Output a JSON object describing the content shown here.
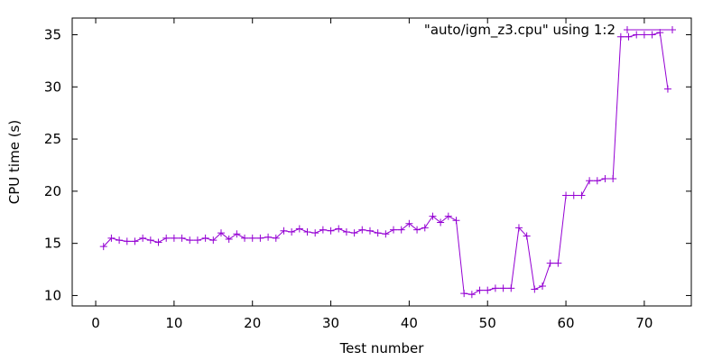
{
  "chart_data": {
    "type": "line",
    "xlabel": "Test number",
    "ylabel": "CPU time (s)",
    "xlim": [
      -3,
      76
    ],
    "ylim": [
      9,
      36.6
    ],
    "xticks": [
      0,
      10,
      20,
      30,
      40,
      50,
      60,
      70
    ],
    "yticks": [
      10,
      15,
      20,
      25,
      30,
      35
    ],
    "grid": false,
    "legend_position": "top-right",
    "colors": {
      "series": "#9400d3",
      "axes": "#000000"
    },
    "series": [
      {
        "name": "\"auto/igm_z3.cpu\" using 1:2",
        "x": [
          1,
          2,
          3,
          4,
          5,
          6,
          7,
          8,
          9,
          10,
          11,
          12,
          13,
          14,
          15,
          16,
          17,
          18,
          19,
          20,
          21,
          22,
          23,
          24,
          25,
          26,
          27,
          28,
          29,
          30,
          31,
          32,
          33,
          34,
          35,
          36,
          37,
          38,
          39,
          40,
          41,
          42,
          43,
          44,
          45,
          46,
          47,
          48,
          49,
          50,
          51,
          52,
          53,
          54,
          55,
          56,
          57,
          58,
          59,
          60,
          61,
          62,
          63,
          64,
          65,
          66,
          67,
          68,
          69,
          70,
          71,
          72,
          73
        ],
        "y": [
          14.7,
          15.5,
          15.3,
          15.2,
          15.2,
          15.5,
          15.3,
          15.1,
          15.5,
          15.5,
          15.5,
          15.3,
          15.3,
          15.5,
          15.3,
          16.0,
          15.4,
          15.9,
          15.5,
          15.5,
          15.5,
          15.6,
          15.5,
          16.2,
          16.1,
          16.4,
          16.1,
          16.0,
          16.3,
          16.2,
          16.4,
          16.1,
          16.0,
          16.3,
          16.2,
          16.0,
          15.9,
          16.3,
          16.3,
          16.9,
          16.3,
          16.5,
          17.6,
          17.0,
          17.6,
          17.2,
          10.2,
          10.1,
          10.5,
          10.5,
          10.7,
          10.7,
          10.7,
          16.5,
          15.7,
          10.6,
          10.9,
          13.1,
          13.1,
          19.6,
          19.6,
          19.6,
          21.0,
          21.0,
          21.2,
          21.2,
          34.8,
          34.8,
          35.0,
          35.0,
          35.0,
          35.2,
          29.8
        ]
      }
    ]
  }
}
